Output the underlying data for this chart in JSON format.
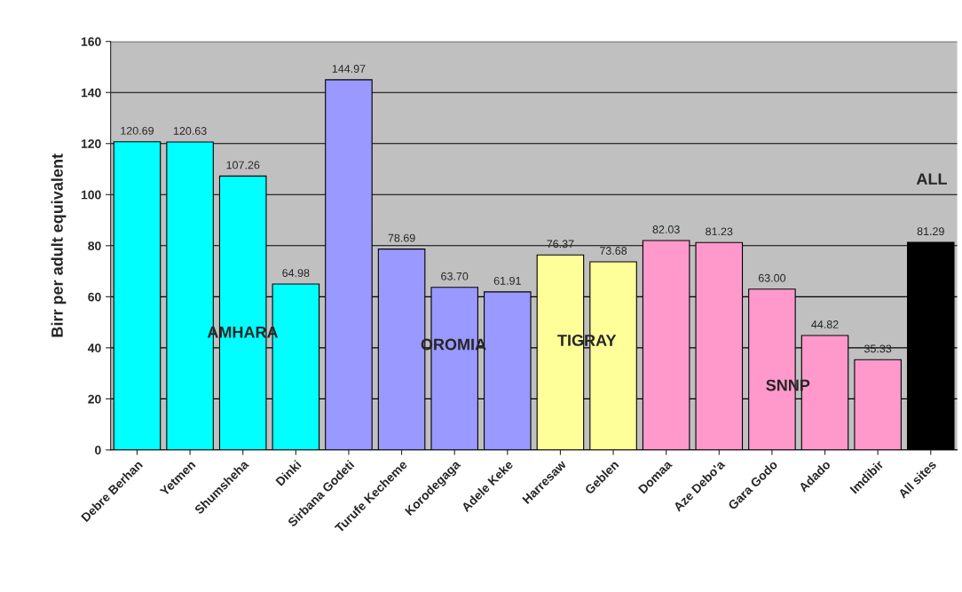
{
  "chart_data": {
    "type": "bar",
    "ylabel": "Birr per adult equivalent",
    "categories": [
      "Debre Berhan",
      "Yetmen",
      "Shumsheha",
      "Dinki",
      "Sirbana Godeti",
      "Turufe Kecheme",
      "Korodegaga",
      "Adele Keke",
      "Harresaw",
      "Geblen",
      "Domaa",
      "Aze Debo'a",
      "Gara Godo",
      "Adado",
      "Imdibir",
      "All sites"
    ],
    "values": [
      120.69,
      120.63,
      107.26,
      64.98,
      144.97,
      78.69,
      63.7,
      61.91,
      76.37,
      73.68,
      82.03,
      81.23,
      63.0,
      44.82,
      35.33,
      81.29
    ],
    "value_labels": [
      "120.69",
      "120.63",
      "107.26",
      "64.98",
      "144.97",
      "78.69",
      "63.70",
      "61.91",
      "76.37",
      "73.68",
      "82.03",
      "81.23",
      "63.00",
      "44.82",
      "35.33",
      "81.29"
    ],
    "colors": [
      "#00ffff",
      "#00ffff",
      "#00ffff",
      "#00ffff",
      "#9999ff",
      "#9999ff",
      "#9999ff",
      "#9999ff",
      "#ffff99",
      "#ffff99",
      "#ff99cc",
      "#ff99cc",
      "#ff99cc",
      "#ff99cc",
      "#ff99cc",
      "#000000"
    ],
    "ylim": [
      0,
      160
    ],
    "yticks": [
      0,
      20,
      40,
      60,
      80,
      100,
      120,
      140,
      160
    ],
    "grid": "y",
    "annotations": [
      "AMHARA",
      "OROMIA",
      "TIGRAY",
      "SNNP",
      "ALL"
    ]
  }
}
